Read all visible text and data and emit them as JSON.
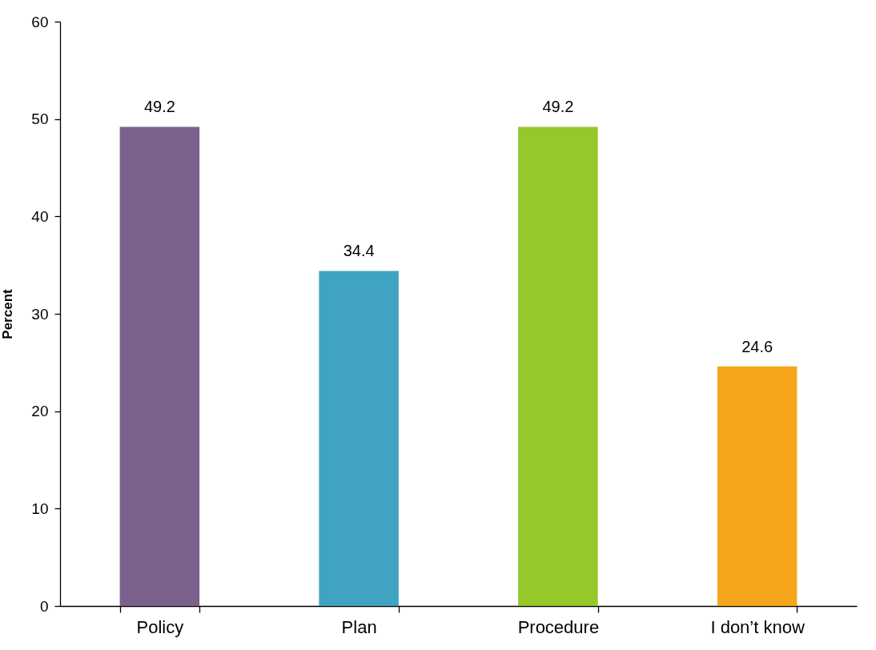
{
  "chart_data": {
    "type": "bar",
    "ylabel": "Percent",
    "categories": [
      "Policy",
      "Plan",
      "Procedure",
      "I don’t know"
    ],
    "values": [
      49.2,
      34.4,
      49.2,
      24.6
    ],
    "colors": [
      "#7b618e",
      "#40a3c1",
      "#95c92a",
      "#f4a51c"
    ],
    "ylim": [
      0,
      60
    ],
    "yticks": [
      0,
      10,
      20,
      30,
      40,
      50,
      60
    ],
    "grid": false,
    "data_labels": true
  }
}
